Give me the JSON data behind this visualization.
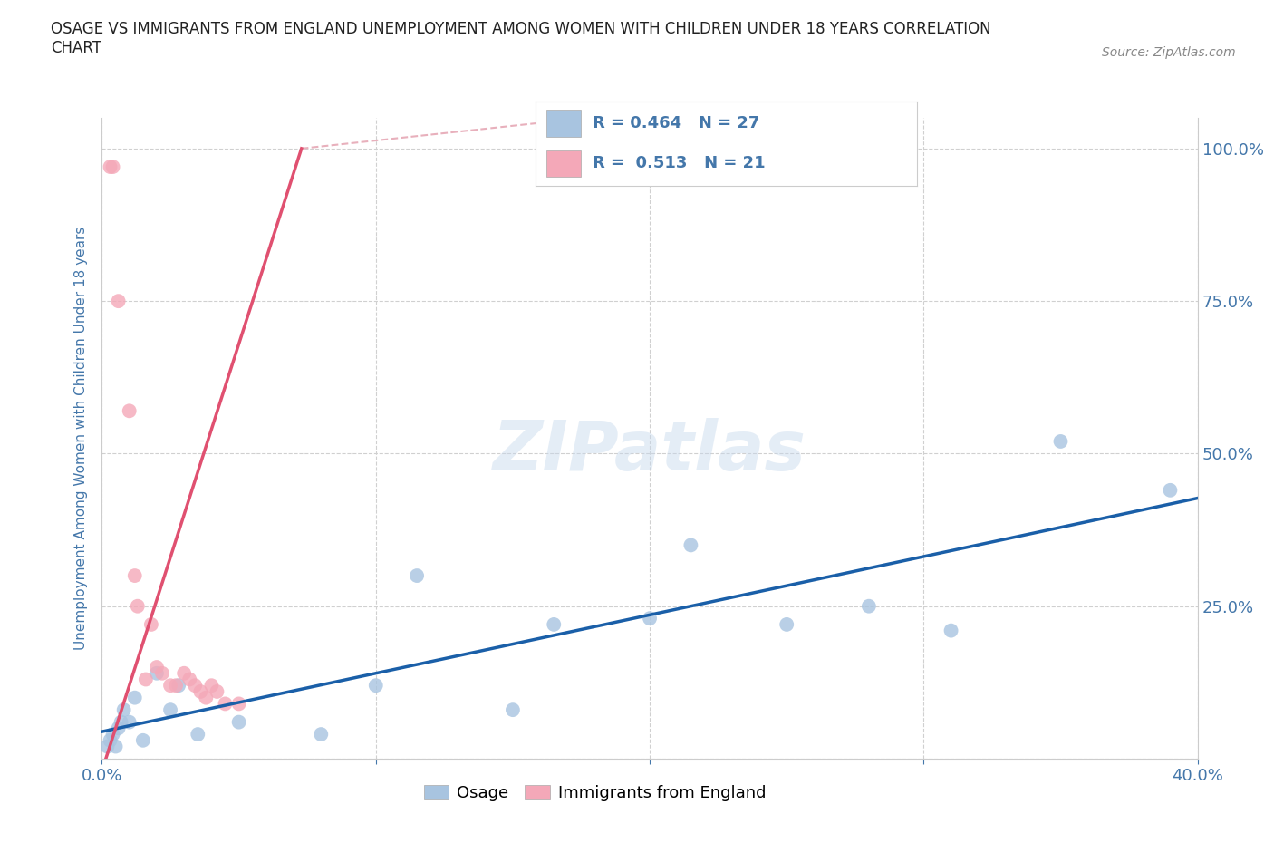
{
  "title": "OSAGE VS IMMIGRANTS FROM ENGLAND UNEMPLOYMENT AMONG WOMEN WITH CHILDREN UNDER 18 YEARS CORRELATION\nCHART",
  "source": "Source: ZipAtlas.com",
  "ylabel": "Unemployment Among Women with Children Under 18 years",
  "watermark": "ZIPatlas",
  "background_color": "#ffffff",
  "plot_bg_color": "#ffffff",
  "grid_color": "#d0d0d0",
  "xlim": [
    0.0,
    0.4
  ],
  "ylim": [
    0.0,
    1.05
  ],
  "x_ticks": [
    0.0,
    0.1,
    0.2,
    0.3,
    0.4
  ],
  "x_tick_labels": [
    "0.0%",
    "",
    "",
    "",
    "40.0%"
  ],
  "y_ticks": [
    0.0,
    0.25,
    0.5,
    0.75,
    1.0
  ],
  "y_tick_labels_right": [
    "",
    "25.0%",
    "50.0%",
    "75.0%",
    "100.0%"
  ],
  "osage_color": "#a8c4e0",
  "england_color": "#f4a8b8",
  "osage_line_color": "#1a5fa8",
  "england_line_color": "#e05070",
  "england_dash_color": "#e8b0bc",
  "osage_R": 0.464,
  "osage_N": 27,
  "england_R": 0.513,
  "england_N": 21,
  "osage_x": [
    0.002,
    0.003,
    0.004,
    0.005,
    0.006,
    0.007,
    0.008,
    0.01,
    0.012,
    0.015,
    0.02,
    0.025,
    0.028,
    0.035,
    0.05,
    0.08,
    0.1,
    0.115,
    0.15,
    0.165,
    0.2,
    0.215,
    0.25,
    0.28,
    0.31,
    0.35,
    0.39
  ],
  "osage_y": [
    0.02,
    0.03,
    0.04,
    0.02,
    0.05,
    0.06,
    0.08,
    0.06,
    0.1,
    0.03,
    0.14,
    0.08,
    0.12,
    0.04,
    0.06,
    0.04,
    0.12,
    0.3,
    0.08,
    0.22,
    0.23,
    0.35,
    0.22,
    0.25,
    0.21,
    0.52,
    0.44
  ],
  "england_x": [
    0.003,
    0.004,
    0.006,
    0.01,
    0.012,
    0.013,
    0.016,
    0.018,
    0.02,
    0.022,
    0.025,
    0.027,
    0.03,
    0.032,
    0.034,
    0.036,
    0.038,
    0.04,
    0.042,
    0.045,
    0.05
  ],
  "england_y": [
    0.97,
    0.97,
    0.75,
    0.57,
    0.3,
    0.25,
    0.13,
    0.22,
    0.15,
    0.14,
    0.12,
    0.12,
    0.14,
    0.13,
    0.12,
    0.11,
    0.1,
    0.12,
    0.11,
    0.09,
    0.09
  ],
  "legend_osage_label": "Osage",
  "legend_england_label": "Immigrants from England",
  "title_color": "#222222",
  "tick_label_color": "#4477aa",
  "england_line_slope": 14.0,
  "england_line_intercept": -0.02,
  "osage_line_slope": 1.05,
  "osage_line_intercept": 0.02
}
